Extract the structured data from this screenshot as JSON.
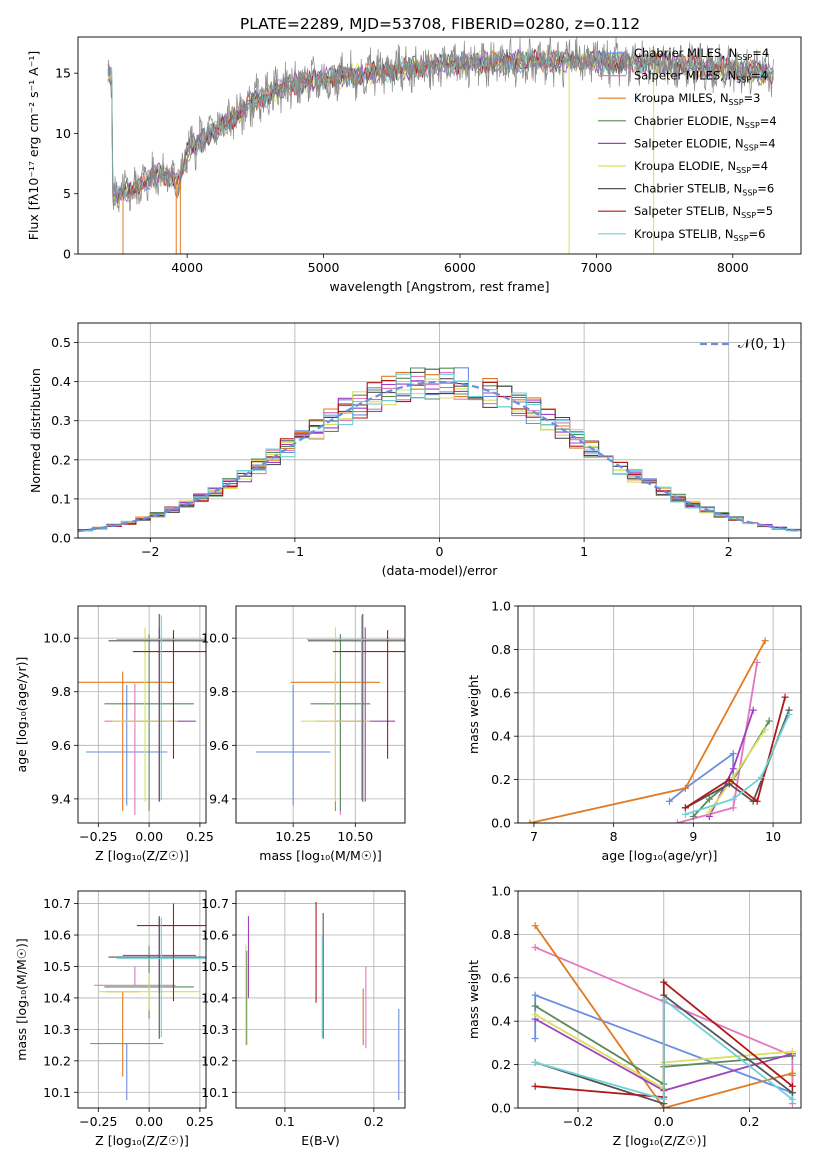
{
  "figure_title": "PLATE=2289, MJD=53708, FIBERID=0280, z=0.112",
  "colors": {
    "chabrier_miles": "#6a8ee0",
    "salpeter_miles": "#e377c2",
    "kroupa_miles": "#e07b22",
    "chabrier_elodie": "#5a8a5a",
    "salpeter_elodie": "#a040c0",
    "kroupa_elodie": "#d8e060",
    "chabrier_stelib": "#555555",
    "salpeter_stelib": "#b01818",
    "kroupa_stelib": "#70d0d8",
    "grid": "#b0b0b0"
  },
  "chart_data": [
    {
      "id": "spectrum",
      "type": "line",
      "xlabel": "wavelength [Angstrom, rest frame]",
      "ylabel": "Flux [fλ10⁻¹⁷ erg cm⁻² s⁻¹ A⁻¹]",
      "xlim": [
        3200,
        8500
      ],
      "ylim": [
        0,
        18
      ],
      "xticks": [
        "4000",
        "5000",
        "6000",
        "7000",
        "8000"
      ],
      "yticks": [
        "0",
        "5",
        "10",
        "15"
      ],
      "grid": false,
      "legend_position": "right",
      "legend": [
        {
          "label": "Chabrier MILES, N",
          "sub": "SSP",
          "rest": "=4"
        },
        {
          "label": "Salpeter MILES, N",
          "sub": "SSP",
          "rest": "=4"
        },
        {
          "label": "Kroupa MILES, N",
          "sub": "SSP",
          "rest": "=3"
        },
        {
          "label": "Chabrier ELODIE, N",
          "sub": "SSP",
          "rest": "=4"
        },
        {
          "label": "Salpeter ELODIE, N",
          "sub": "SSP",
          "rest": "=4"
        },
        {
          "label": "Kroupa ELODIE, N",
          "sub": "SSP",
          "rest": "=4"
        },
        {
          "label": "Chabrier STELIB, N",
          "sub": "SSP",
          "rest": "=6"
        },
        {
          "label": "Salpeter STELIB, N",
          "sub": "SSP",
          "rest": "=5"
        },
        {
          "label": "Kroupa STELIB, N",
          "sub": "SSP",
          "rest": "=6"
        }
      ],
      "continuum_anchors": [
        [
          3450,
          4.6
        ],
        [
          3600,
          5.4
        ],
        [
          3800,
          6.8
        ],
        [
          3950,
          6.0
        ],
        [
          4000,
          8.6
        ],
        [
          4300,
          11.0
        ],
        [
          4500,
          12.8
        ],
        [
          4800,
          14.2
        ],
        [
          5200,
          14.8
        ],
        [
          5600,
          15.4
        ],
        [
          6000,
          15.8
        ],
        [
          6500,
          16.0
        ],
        [
          7000,
          16.0
        ],
        [
          7500,
          15.8
        ],
        [
          8000,
          15.3
        ],
        [
          8300,
          15.0
        ]
      ],
      "dropouts": [
        [
          3530,
          0
        ],
        [
          3920,
          0
        ],
        [
          3950,
          0
        ],
        [
          6800,
          0
        ],
        [
          7420,
          0
        ]
      ]
    },
    {
      "id": "residuals",
      "type": "histogram",
      "xlabel": "(data-model)/error",
      "ylabel": "Normed distribution",
      "xlim": [
        -2.5,
        2.5
      ],
      "ylim": [
        0,
        0.55
      ],
      "xticks": [
        "−2",
        "−1",
        "0",
        "1",
        "2"
      ],
      "yticks": [
        "0.0",
        "0.1",
        "0.2",
        "0.3",
        "0.4",
        "0.5"
      ],
      "grid": true,
      "legend_position": "top-right",
      "legend": [
        "𝒩(0, 1)"
      ],
      "gaussian": {
        "mu": 0,
        "sigma": 1
      },
      "bin_edges_from": -2.5,
      "bin_width": 0.1,
      "n_bins": 50
    },
    {
      "id": "age_vs_Z",
      "type": "errorbar",
      "xlabel": "Z [log₁₀(Z/Z☉)]",
      "ylabel": "age  [log₁₀(age/yr)]",
      "xlim": [
        -0.35,
        0.28
      ],
      "ylim": [
        9.31,
        10.12
      ],
      "xticks": [
        "−0.25",
        "0.00",
        "0.25"
      ],
      "yticks": [
        "9.4",
        "9.6",
        "9.8",
        "10.0"
      ],
      "grid": true,
      "points": [
        {
          "model": "chabrier_miles",
          "x": -0.11,
          "xerr": 0.2,
          "y": 9.575,
          "yerr_lo": 0.2,
          "yerr_hi": 0.25
        },
        {
          "model": "kroupa_miles",
          "x": -0.13,
          "xerr": 0.25,
          "y": 9.835,
          "yerr_lo": 0.48,
          "yerr_hi": 0.04
        },
        {
          "model": "salpeter_miles",
          "x": -0.07,
          "xerr": 0.15,
          "y": 9.69,
          "yerr_lo": 0.35,
          "yerr_hi": 0.14
        },
        {
          "model": "chabrier_elodie",
          "x": 0.0,
          "xerr": 0.22,
          "y": 9.755,
          "yerr_lo": 0.4,
          "yerr_hi": 0.26
        },
        {
          "model": "salpeter_elodie",
          "x": 0.05,
          "xerr": 0.18,
          "y": 9.69,
          "yerr_lo": 0.3,
          "yerr_hi": 0.35
        },
        {
          "model": "kroupa_elodie",
          "x": -0.02,
          "xerr": 0.16,
          "y": 9.69,
          "yerr_lo": 0.3,
          "yerr_hi": 0.35
        },
        {
          "model": "chabrier_stelib",
          "x": 0.05,
          "xerr": 0.25,
          "y": 9.99,
          "yerr_lo": 0.6,
          "yerr_hi": 0.1
        },
        {
          "model": "salpeter_stelib",
          "x": 0.12,
          "xerr": 0.2,
          "y": 9.95,
          "yerr_lo": 0.4,
          "yerr_hi": 0.08
        },
        {
          "model": "kroupa_stelib",
          "x": 0.06,
          "xerr": 0.22,
          "y": 9.995,
          "yerr_lo": 0.6,
          "yerr_hi": 0.09
        }
      ]
    },
    {
      "id": "age_vs_mass",
      "type": "errorbar",
      "xlabel": "mass [log₁₀(M/M☉)]",
      "ylabel": "",
      "xlim": [
        10.02,
        10.7
      ],
      "ylim": [
        9.31,
        10.12
      ],
      "xticks": [
        "10.25",
        "10.50"
      ],
      "yticks": [
        "9.4",
        "9.6",
        "9.8",
        "10.0"
      ],
      "grid": true,
      "points": [
        {
          "model": "chabrier_miles",
          "x": 10.25,
          "xerr": 0.15,
          "y": 9.575,
          "yerr_lo": 0.2,
          "yerr_hi": 0.25
        },
        {
          "model": "kroupa_miles",
          "x": 10.42,
          "xerr": 0.18,
          "y": 9.835,
          "yerr_lo": 0.48,
          "yerr_hi": 0.04
        },
        {
          "model": "salpeter_miles",
          "x": 10.44,
          "xerr": 0.1,
          "y": 9.69,
          "yerr_lo": 0.35,
          "yerr_hi": 0.14
        },
        {
          "model": "chabrier_elodie",
          "x": 10.44,
          "xerr": 0.12,
          "y": 9.755,
          "yerr_lo": 0.4,
          "yerr_hi": 0.26
        },
        {
          "model": "salpeter_elodie",
          "x": 10.54,
          "xerr": 0.12,
          "y": 9.69,
          "yerr_lo": 0.3,
          "yerr_hi": 0.35
        },
        {
          "model": "kroupa_elodie",
          "x": 10.42,
          "xerr": 0.14,
          "y": 9.69,
          "yerr_lo": 0.3,
          "yerr_hi": 0.35
        },
        {
          "model": "chabrier_stelib",
          "x": 10.53,
          "xerr": 0.22,
          "y": 9.99,
          "yerr_lo": 0.6,
          "yerr_hi": 0.1
        },
        {
          "model": "salpeter_stelib",
          "x": 10.63,
          "xerr": 0.22,
          "y": 9.95,
          "yerr_lo": 0.4,
          "yerr_hi": 0.08
        },
        {
          "model": "kroupa_stelib",
          "x": 10.525,
          "xerr": 0.22,
          "y": 9.995,
          "yerr_lo": 0.6,
          "yerr_hi": 0.09
        }
      ]
    },
    {
      "id": "massweight_vs_age",
      "type": "line",
      "xlabel": "age  [log₁₀(age/yr)]",
      "ylabel": "mass weight",
      "xlim": [
        6.8,
        10.35
      ],
      "ylim": [
        0,
        1.0
      ],
      "xticks": [
        "7",
        "8",
        "9",
        "10"
      ],
      "yticks": [
        "0.0",
        "0.2",
        "0.4",
        "0.6",
        "0.8",
        "1.0"
      ],
      "grid": true,
      "series": [
        {
          "model": "chabrier_miles",
          "x": [
            8.7,
            8.9,
            9.5,
            9.5
          ],
          "y": [
            0.1,
            0.16,
            0.32,
            0.2
          ]
        },
        {
          "model": "salpeter_miles",
          "x": [
            8.8,
            9.5,
            9.8
          ],
          "y": [
            0.0,
            0.07,
            0.74
          ]
        },
        {
          "model": "kroupa_miles",
          "x": [
            6.95,
            8.9,
            9.9
          ],
          "y": [
            0.0,
            0.16,
            0.84
          ]
        },
        {
          "model": "chabrier_elodie",
          "x": [
            9.0,
            9.2,
            9.5,
            9.95
          ],
          "y": [
            0.03,
            0.11,
            0.2,
            0.47
          ]
        },
        {
          "model": "salpeter_elodie",
          "x": [
            9.2,
            9.5,
            9.75
          ],
          "y": [
            0.03,
            0.25,
            0.52
          ]
        },
        {
          "model": "kroupa_elodie",
          "x": [
            9.2,
            9.5,
            9.9
          ],
          "y": [
            0.05,
            0.21,
            0.43
          ]
        },
        {
          "model": "chabrier_stelib",
          "x": [
            8.9,
            9.45,
            9.75,
            10.2
          ],
          "y": [
            0.07,
            0.18,
            0.1,
            0.52
          ]
        },
        {
          "model": "salpeter_stelib",
          "x": [
            8.9,
            9.45,
            9.8,
            10.15
          ],
          "y": [
            0.07,
            0.2,
            0.1,
            0.58
          ]
        },
        {
          "model": "kroupa_stelib",
          "x": [
            8.9,
            9.5,
            9.85,
            10.2
          ],
          "y": [
            0.04,
            0.11,
            0.21,
            0.5
          ]
        }
      ]
    },
    {
      "id": "mass_vs_Z",
      "type": "errorbar",
      "xlabel": "Z [log₁₀(Z/Z☉)]",
      "ylabel": "mass [log₁₀(M/M☉)]",
      "xlim": [
        -0.35,
        0.28
      ],
      "ylim": [
        10.05,
        10.74
      ],
      "xticks": [
        "−0.25",
        "0.00",
        "0.25"
      ],
      "yticks": [
        "10.1",
        "10.2",
        "10.3",
        "10.4",
        "10.5",
        "10.6",
        "10.7"
      ],
      "grid": true,
      "points": [
        {
          "model": "chabrier_miles",
          "x": -0.11,
          "xerr": 0.18,
          "y": 10.255,
          "yerr_lo": 0.18,
          "yerr_hi": 0.0
        },
        {
          "model": "kroupa_miles",
          "x": -0.13,
          "xerr": 0.08,
          "y": 10.42,
          "yerr_lo": 0.27,
          "yerr_hi": 0.0
        },
        {
          "model": "salpeter_miles",
          "x": -0.07,
          "xerr": 0.2,
          "y": 10.44,
          "yerr_lo": 0.0,
          "yerr_hi": 0.06
        },
        {
          "model": "chabrier_elodie",
          "x": 0.0,
          "xerr": 0.22,
          "y": 10.435,
          "yerr_lo": 0.1,
          "yerr_hi": 0.13
        },
        {
          "model": "salpeter_elodie",
          "x": 0.05,
          "xerr": 0.18,
          "y": 10.535,
          "yerr_lo": 0.12,
          "yerr_hi": 0.12
        },
        {
          "model": "kroupa_elodie",
          "x": 0.0,
          "xerr": 0.25,
          "y": 10.42,
          "yerr_lo": 0.06,
          "yerr_hi": 0.06
        },
        {
          "model": "chabrier_stelib",
          "x": 0.05,
          "xerr": 0.25,
          "y": 10.53,
          "yerr_lo": 0.26,
          "yerr_hi": 0.13
        },
        {
          "model": "salpeter_stelib",
          "x": 0.12,
          "xerr": 0.18,
          "y": 10.63,
          "yerr_lo": 0.24,
          "yerr_hi": 0.07
        },
        {
          "model": "kroupa_stelib",
          "x": 0.06,
          "xerr": 0.22,
          "y": 10.525,
          "yerr_lo": 0.25,
          "yerr_hi": 0.13
        }
      ]
    },
    {
      "id": "mass_vs_ebv",
      "type": "errorbar",
      "xlabel": "E(B-V)",
      "ylabel": "",
      "xlim": [
        0.045,
        0.235
      ],
      "ylim": [
        10.05,
        10.74
      ],
      "xticks": [
        "0.1",
        "0.2"
      ],
      "yticks": [
        "10.1",
        "10.2",
        "10.3",
        "10.4",
        "10.5",
        "10.6",
        "10.7"
      ],
      "grid": true,
      "points": [
        {
          "model": "chabrier_miles",
          "x": 0.228,
          "y": 10.22,
          "yerr_lo": 0.145,
          "yerr_hi": 0.145
        },
        {
          "model": "kroupa_miles",
          "x": 0.188,
          "y": 10.34,
          "yerr_lo": 0.09,
          "yerr_hi": 0.09
        },
        {
          "model": "salpeter_miles",
          "x": 0.191,
          "y": 10.37,
          "yerr_lo": 0.13,
          "yerr_hi": 0.13
        },
        {
          "model": "chabrier_elodie",
          "x": 0.057,
          "y": 10.4,
          "yerr_lo": 0.15,
          "yerr_hi": 0.15
        },
        {
          "model": "salpeter_elodie",
          "x": 0.059,
          "y": 10.53,
          "yerr_lo": 0.13,
          "yerr_hi": 0.13
        },
        {
          "model": "kroupa_elodie",
          "x": 0.056,
          "y": 10.41,
          "yerr_lo": 0.16,
          "yerr_hi": 0.16
        },
        {
          "model": "chabrier_stelib",
          "x": 0.143,
          "y": 10.47,
          "yerr_lo": 0.2,
          "yerr_hi": 0.2
        },
        {
          "model": "salpeter_stelib",
          "x": 0.135,
          "y": 10.545,
          "yerr_lo": 0.16,
          "yerr_hi": 0.16
        },
        {
          "model": "kroupa_stelib",
          "x": 0.142,
          "y": 10.435,
          "yerr_lo": 0.16,
          "yerr_hi": 0.16
        }
      ]
    },
    {
      "id": "massweight_vs_Z",
      "type": "line",
      "xlabel": "Z [log₁₀(Z/Z☉)]",
      "ylabel": "mass weight",
      "xlim": [
        -0.34,
        0.32
      ],
      "ylim": [
        0,
        1.0
      ],
      "xticks": [
        "−0.2",
        "0.0",
        "0.2"
      ],
      "yticks": [
        "0.0",
        "0.2",
        "0.4",
        "0.6",
        "0.8",
        "1.0"
      ],
      "grid": true,
      "series": [
        {
          "model": "chabrier_miles",
          "x": [
            -0.3,
            -0.3,
            0.3,
            0.3
          ],
          "y": [
            0.32,
            0.52,
            0.07,
            0.15
          ]
        },
        {
          "model": "salpeter_miles",
          "x": [
            -0.3,
            0.3,
            0.3
          ],
          "y": [
            0.74,
            0.24,
            0.02
          ]
        },
        {
          "model": "kroupa_miles",
          "x": [
            -0.3,
            0.0,
            0.3
          ],
          "y": [
            0.84,
            0.0,
            0.16
          ]
        },
        {
          "model": "chabrier_elodie",
          "x": [
            -0.3,
            0.0,
            0.0,
            0.3
          ],
          "y": [
            0.47,
            0.11,
            0.19,
            0.24
          ]
        },
        {
          "model": "salpeter_elodie",
          "x": [
            -0.3,
            0.0,
            0.3
          ],
          "y": [
            0.41,
            0.08,
            0.25
          ]
        },
        {
          "model": "kroupa_elodie",
          "x": [
            -0.3,
            0.0,
            0.0,
            0.3
          ],
          "y": [
            0.43,
            0.09,
            0.21,
            0.26
          ]
        },
        {
          "model": "chabrier_stelib",
          "x": [
            -0.3,
            0.0,
            0.0,
            0.3
          ],
          "y": [
            0.21,
            0.02,
            0.52,
            0.07
          ]
        },
        {
          "model": "salpeter_stelib",
          "x": [
            -0.3,
            0.0,
            0.0,
            0.3
          ],
          "y": [
            0.1,
            0.05,
            0.58,
            0.1
          ]
        },
        {
          "model": "kroupa_stelib",
          "x": [
            -0.3,
            0.0,
            0.0,
            0.3
          ],
          "y": [
            0.21,
            0.04,
            0.5,
            0.04
          ]
        }
      ]
    }
  ]
}
